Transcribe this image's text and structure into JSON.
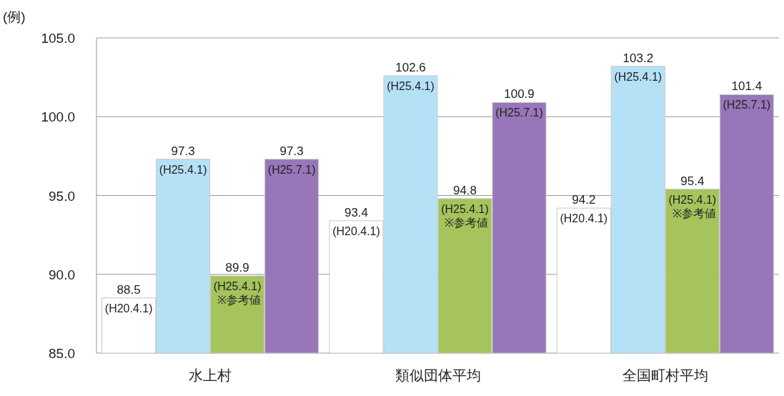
{
  "chart_data": {
    "type": "bar",
    "ylabel": "(例)",
    "categories": [
      "水上村",
      "類似団体平均",
      "全国町村平均"
    ],
    "series": [
      {
        "name": "(H20.4.1)",
        "color": "#ffffff",
        "values": [
          88.5,
          93.4,
          94.2
        ]
      },
      {
        "name": "(H25.4.1)",
        "color": "#b5e1f7",
        "values": [
          97.3,
          102.6,
          103.2
        ]
      },
      {
        "name": "(H25.4.1) ※参考値",
        "color": "#a5c45c",
        "values": [
          89.9,
          94.8,
          95.4
        ]
      },
      {
        "name": "(H25.7.1)",
        "color": "#9777b9",
        "values": [
          97.3,
          100.9,
          101.4
        ]
      }
    ],
    "ylim": [
      85,
      105
    ],
    "yticks": [
      {
        "value": 85,
        "label": "85.0"
      },
      {
        "value": 90,
        "label": "90.0"
      },
      {
        "value": 95,
        "label": "95.0"
      },
      {
        "value": 100,
        "label": "100.0"
      },
      {
        "value": 105,
        "label": "105.0"
      }
    ],
    "grid": "y",
    "data_labels": true
  }
}
